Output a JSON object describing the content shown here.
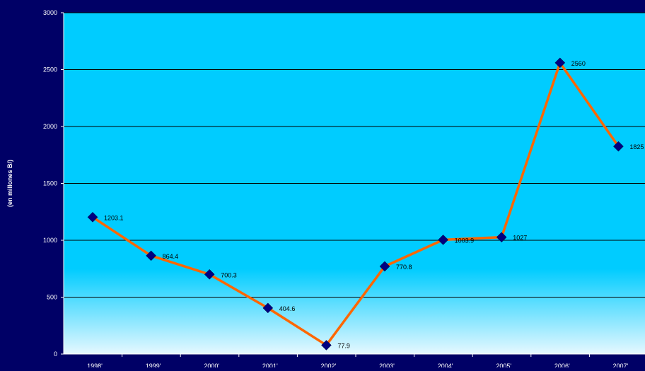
{
  "chart_data": {
    "type": "line",
    "title": "",
    "xlabel": "",
    "ylabel": "(en millones B/)",
    "categories": [
      "1998'",
      "1999'",
      "2000'",
      "2001'",
      "2002'",
      "2003'",
      "2004'",
      "2005'",
      "2006'",
      "2007'"
    ],
    "series": [
      {
        "values": [
          1203.1,
          864.4,
          700.3,
          404.6,
          77.9,
          770.8,
          1003.9,
          1027,
          2560,
          1825
        ]
      }
    ],
    "data_labels": [
      "1203.1",
      "864.4",
      "700.3",
      "404.6",
      "77.9",
      "770.8",
      "1003.9",
      "1027",
      "2560",
      "1825"
    ],
    "ylim": [
      0,
      3000
    ],
    "yticks": [
      "0",
      "500",
      "1000",
      "1500",
      "2000",
      "2500",
      "3000"
    ],
    "ytick_values": [
      0,
      500,
      1000,
      1500,
      2000,
      2500,
      3000
    ],
    "grid": true,
    "legend": "none",
    "colors": {
      "page_background": "#000066",
      "plot_background_top": "#00CCFF",
      "plot_background_bottom": "#E6F8FF",
      "line": "#FF6600",
      "marker": "#000080",
      "gridline": "#000000",
      "axis_text": "#FFFFFF",
      "data_label_text": "#000000"
    },
    "marker_shape": "diamond"
  }
}
